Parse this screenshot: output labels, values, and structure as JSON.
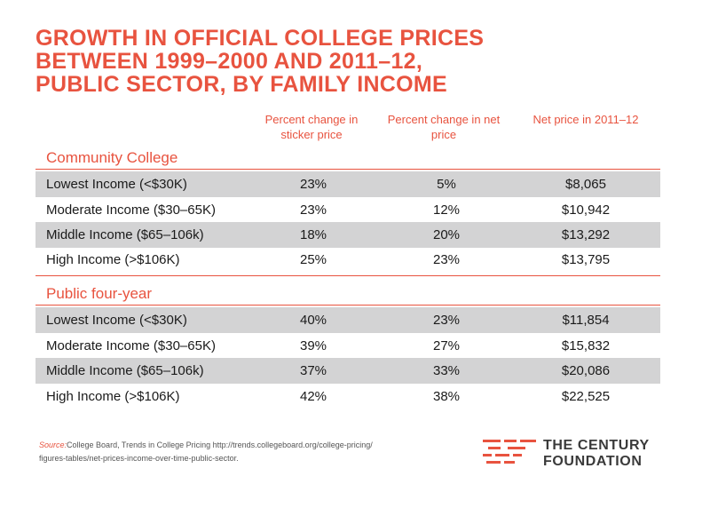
{
  "title_lines": [
    "GROWTH IN OFFICIAL COLLEGE PRICES",
    "BETWEEN 1999–2000 AND 2011–12,",
    "PUBLIC SECTOR, BY FAMILY INCOME"
  ],
  "chart_data": {
    "type": "table",
    "columns": [
      "Percent change in sticker price",
      "Percent change in net price",
      "Net price in 2011–12"
    ],
    "column_header_lines": [
      [
        "Percent change in",
        "sticker price"
      ],
      [
        "Percent change in net",
        "price"
      ],
      [
        "Net price in 2011–12"
      ]
    ],
    "sections": [
      {
        "name": "Community College",
        "rows": [
          {
            "label": "Lowest Income (<$30K)",
            "sticker": "23%",
            "net": "5%",
            "price": "$8,065"
          },
          {
            "label": "Moderate Income ($30–65K)",
            "sticker": "23%",
            "net": "12%",
            "price": "$10,942"
          },
          {
            "label": "Middle Income ($65–106k)",
            "sticker": "18%",
            "net": "20%",
            "price": "$13,292"
          },
          {
            "label": "High Income (>$106K)",
            "sticker": "25%",
            "net": "23%",
            "price": "$13,795"
          }
        ]
      },
      {
        "name": "Public four-year",
        "rows": [
          {
            "label": "Lowest Income (<$30K)",
            "sticker": "40%",
            "net": "23%",
            "price": "$11,854"
          },
          {
            "label": "Moderate Income ($30–65K)",
            "sticker": "39%",
            "net": "27%",
            "price": "$15,832"
          },
          {
            "label": "Middle Income ($65–106k)",
            "sticker": "37%",
            "net": "33%",
            "price": "$20,086"
          },
          {
            "label": "High Income (>$106K)",
            "sticker": "42%",
            "net": "38%",
            "price": "$22,525"
          }
        ]
      }
    ]
  },
  "source": {
    "prefix": "Source:",
    "line1": "College Board, Trends in College Pricing http://trends.collegeboard.org/college-pricing/",
    "line2": "figures-tables/net-prices-income-over-time-public-sector."
  },
  "logo": {
    "line1": "THE CENTURY",
    "line2": "FOUNDATION"
  },
  "colors": {
    "accent": "#e8533f",
    "row_shade": "#d3d3d4",
    "text": "#1a1a1a"
  }
}
